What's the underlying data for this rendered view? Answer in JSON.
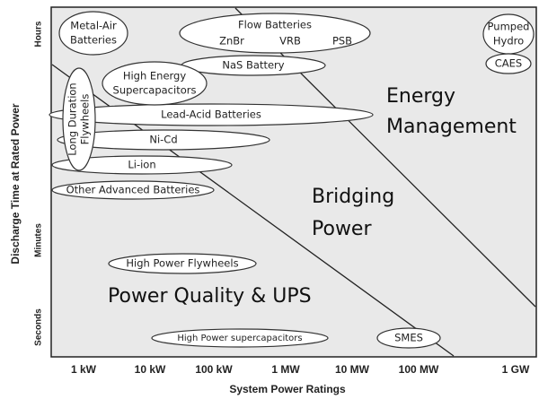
{
  "axes": {
    "y_label": "Discharge Time at Rated Power",
    "y_ticks": [
      "Hours",
      "Minutes",
      "Seconds"
    ],
    "x_label": "System Power Ratings",
    "x_ticks": [
      "1 kW",
      "10 kW",
      "100 kW",
      "1 MW",
      "10 MW",
      "100 MW",
      "1 GW"
    ]
  },
  "technologies": [
    {
      "lines": [
        "Metal-Air",
        "Batteries"
      ]
    },
    {
      "lines": [
        "Flow Batteries"
      ],
      "types": [
        "ZnBr",
        "VRB",
        "PSB"
      ]
    },
    {
      "lines": [
        "Pumped",
        "Hydro"
      ]
    },
    {
      "lines": [
        "CAES"
      ]
    },
    {
      "lines": [
        "NaS Battery"
      ]
    },
    {
      "lines": [
        "High Energy",
        "Supercapacitors"
      ]
    },
    {
      "lines": [
        "Long Duration",
        "Flywheels"
      ]
    },
    {
      "lines": [
        "Lead-Acid Batteries"
      ]
    },
    {
      "lines": [
        "Ni-Cd"
      ]
    },
    {
      "lines": [
        "Li-ion"
      ]
    },
    {
      "lines": [
        "Other Advanced Batteries"
      ]
    },
    {
      "lines": [
        "High Power Flywheels"
      ]
    },
    {
      "lines": [
        "High Power supercapacitors"
      ]
    },
    {
      "lines": [
        "SMES"
      ]
    }
  ],
  "regions": [
    {
      "lines": [
        "Energy",
        "Management"
      ]
    },
    {
      "lines": [
        "Bridging",
        "Power"
      ]
    },
    {
      "lines": [
        "Power Quality & UPS"
      ]
    }
  ]
}
